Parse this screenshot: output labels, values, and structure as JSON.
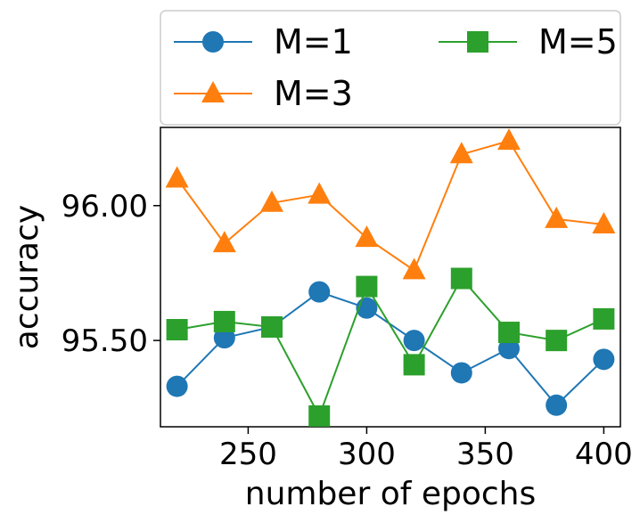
{
  "chart_data": {
    "type": "line",
    "xlabel": "number of epochs",
    "ylabel": "accuracy",
    "x": [
      220,
      240,
      260,
      280,
      300,
      320,
      340,
      360,
      380,
      400
    ],
    "xlim": [
      213,
      407
    ],
    "ylim": [
      95.18,
      96.29
    ],
    "xticks": [
      250,
      300,
      350,
      400
    ],
    "xtick_labels": [
      "250",
      "300",
      "350",
      "400"
    ],
    "yticks": [
      95.5,
      96.0
    ],
    "ytick_labels": [
      "95.50",
      "96.00"
    ],
    "grid": false,
    "legend": {
      "placement": "top",
      "columns": 2
    },
    "series": [
      {
        "name": "M=1",
        "color": "#1f77b4",
        "marker": "circle",
        "values": [
          95.33,
          95.51,
          95.55,
          95.68,
          95.62,
          95.5,
          95.38,
          95.47,
          95.26,
          95.43
        ]
      },
      {
        "name": "M=3",
        "color": "#ff7f0e",
        "marker": "triangle",
        "values": [
          96.1,
          95.86,
          96.01,
          96.04,
          95.88,
          95.76,
          96.19,
          96.24,
          95.95,
          95.93
        ]
      },
      {
        "name": "M=5",
        "color": "#2ca02c",
        "marker": "square",
        "values": [
          95.54,
          95.57,
          95.55,
          95.22,
          95.7,
          95.41,
          95.73,
          95.53,
          95.5,
          95.58
        ]
      }
    ]
  }
}
